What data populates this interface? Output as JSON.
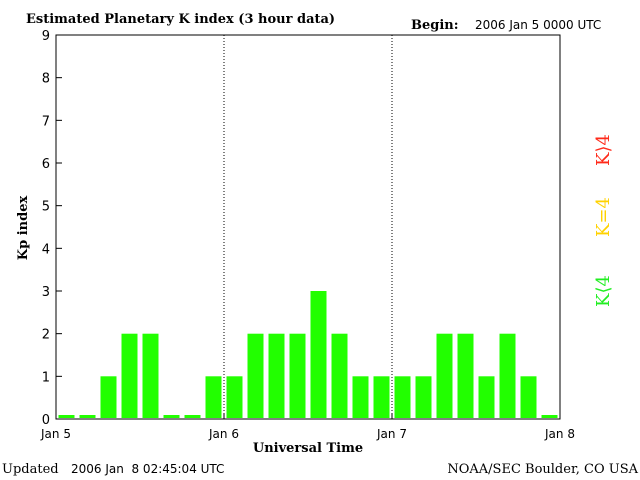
{
  "header": {
    "title": "Estimated Planetary K index (3 hour data)",
    "begin_label": "Begin:",
    "begin_value": "2006 Jan 5 0000 UTC"
  },
  "footer": {
    "updated_label": "Updated",
    "updated_value": "2006 Jan  8 02:45:04 UTC",
    "source": "NOAA/SEC Boulder, CO USA"
  },
  "legend": {
    "greater": {
      "text": "K⟩4",
      "color": "#ff2a1a"
    },
    "equal": {
      "text": "K=4",
      "color": "#ffd200"
    },
    "less": {
      "text": "K⟨4",
      "color": "#22ee22"
    }
  },
  "chart_data": {
    "type": "bar",
    "title": "Estimated Planetary K index (3 hour data)",
    "xlabel": "Universal Time",
    "ylabel": "Kp index",
    "ylim": [
      0,
      9
    ],
    "yticks": [
      0,
      1,
      2,
      3,
      4,
      5,
      6,
      7,
      8,
      9
    ],
    "x_ticks": [
      "Jan 5",
      "Jan 6",
      "Jan 7",
      "Jan 8"
    ],
    "bar_interval_hours": 3,
    "bar_color": "#22ff00",
    "values": [
      0,
      0,
      1,
      2,
      2,
      0,
      0,
      1,
      1,
      2,
      2,
      2,
      3,
      2,
      1,
      1,
      1,
      1,
      2,
      2,
      1,
      2,
      1,
      0
    ]
  }
}
